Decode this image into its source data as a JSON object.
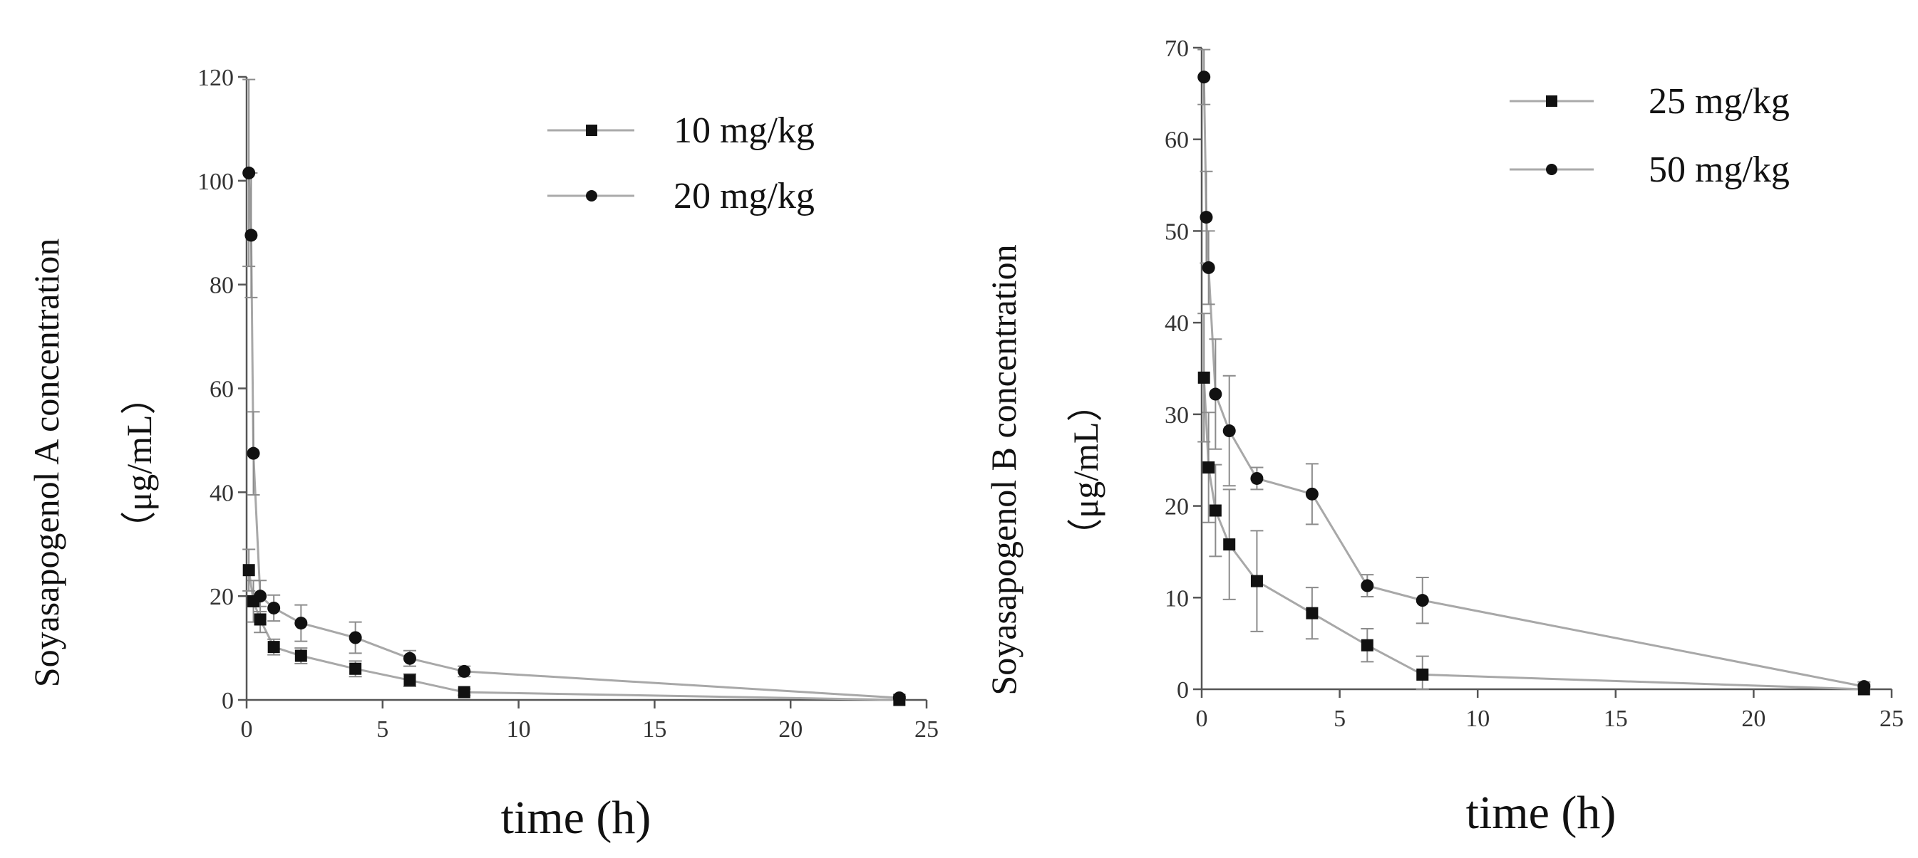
{
  "chart_data": [
    {
      "type": "line",
      "xlabel": "time (h)",
      "ylabel": "Soyasapogenol A concentration",
      "ylabel_unit": "（μg/mL）",
      "xlim": [
        0,
        25
      ],
      "ylim": [
        0,
        120
      ],
      "xticks": [
        0,
        5,
        10,
        15,
        20,
        25
      ],
      "yticks": [
        0,
        20,
        40,
        60,
        80,
        100,
        120
      ],
      "xtick_labels": [
        "0",
        "5",
        "10",
        "15",
        "20",
        "25"
      ],
      "ytick_labels": [
        "0",
        "20",
        "40",
        "60",
        "80",
        "100",
        "120"
      ],
      "legend_position": "top-right",
      "series": [
        {
          "name": "10 mg/kg",
          "marker": "square",
          "x": [
            0.083,
            0.25,
            0.5,
            1,
            2,
            4,
            6,
            8,
            24
          ],
          "y": [
            25,
            19,
            15.5,
            10.2,
            8.5,
            6,
            3.8,
            1.5,
            0
          ],
          "err": [
            4,
            4,
            2.5,
            1.5,
            1.5,
            1.5,
            1.2,
            0.6,
            0.3
          ]
        },
        {
          "name": "20 mg/kg",
          "marker": "circle",
          "x": [
            0.083,
            0.167,
            0.25,
            0.5,
            1,
            2,
            4,
            6,
            8,
            24
          ],
          "y": [
            101.5,
            89.5,
            47.5,
            20,
            17.7,
            14.8,
            12,
            8,
            5.5,
            0.4
          ],
          "err": [
            18,
            12,
            8,
            3,
            2.5,
            3.5,
            3,
            1.5,
            1,
            0.3
          ]
        }
      ]
    },
    {
      "type": "line",
      "xlabel": "time (h)",
      "ylabel": "Soyasapogenol B concentration",
      "ylabel_unit": "（μg/mL）",
      "xlim": [
        0,
        25
      ],
      "ylim": [
        0,
        70
      ],
      "xticks": [
        0,
        5,
        10,
        15,
        20,
        25
      ],
      "yticks": [
        0,
        10,
        20,
        30,
        40,
        50,
        60,
        70
      ],
      "xtick_labels": [
        "0",
        "5",
        "10",
        "15",
        "20",
        "25"
      ],
      "ytick_labels": [
        "0",
        "10",
        "20",
        "30",
        "40",
        "50",
        "60",
        "70"
      ],
      "legend_position": "top-right",
      "series": [
        {
          "name": "25 mg/kg",
          "marker": "square",
          "x": [
            0.083,
            0.25,
            0.5,
            1,
            2,
            4,
            6,
            8,
            24
          ],
          "y": [
            34,
            24.2,
            19.5,
            15.8,
            11.8,
            8.3,
            4.8,
            1.6,
            0
          ],
          "err": [
            7,
            6,
            5,
            6,
            5.5,
            2.8,
            1.8,
            2,
            0.5
          ]
        },
        {
          "name": "50 mg/kg",
          "marker": "circle",
          "x": [
            0.083,
            0.167,
            0.25,
            0.5,
            1,
            2,
            4,
            6,
            8,
            24
          ],
          "y": [
            66.8,
            51.5,
            46,
            32.2,
            28.2,
            23,
            21.3,
            11.3,
            9.7,
            0.3
          ],
          "err": [
            3,
            5,
            4,
            6,
            6,
            1.2,
            3.3,
            1.2,
            2.5,
            0.5
          ]
        }
      ]
    }
  ]
}
